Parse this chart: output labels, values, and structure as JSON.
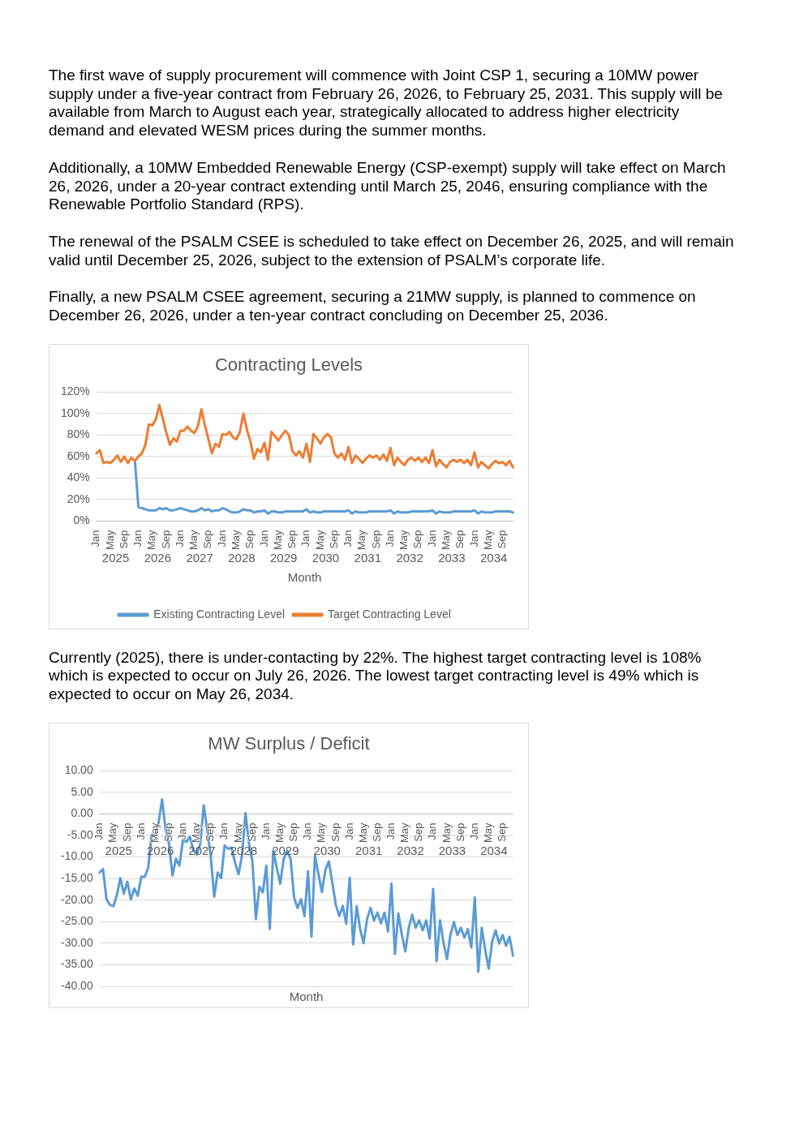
{
  "chart_data": [
    {
      "type": "line",
      "title": "Contracting Levels",
      "xlabel": "Month",
      "annotations": [
        "The first wave of supply procurement will commence with Joint CSP 1, securing a 10MW power supply under a five-year contract from February 26, 2026, to February 25, 2031. This supply will be available from March to August each year, strategically allocated to address higher electricity demand and elevated WESM prices during the summer months.",
        "Additionally, a 10MW Embedded Renewable Energy (CSP-exempt) supply will take effect on March 26, 2026, under a 20-year contract extending until March 25, 2046, ensuring compliance with the Renewable Portfolio Standard (RPS).",
        "The renewal of the PSALM CSEE is scheduled to take effect on December 26, 2025, and will remain valid until December 25, 2026, subject to the extension of PSALM’s corporate life.",
        "Finally, a new PSALM CSEE agreement, securing a 21MW supply, is planned to commence on December 26, 2026, under a ten-year contract concluding on December 25, 2036.",
        "2025",
        "2026",
        "2027",
        "2028",
        "2029",
        "2030",
        "2031",
        "2032",
        "2033",
        "2034"
      ],
      "categories": [
        "Jan",
        null,
        null,
        null,
        "May",
        null,
        null,
        null,
        "Sep",
        null,
        null,
        null,
        "Jan",
        null,
        null,
        null,
        "May",
        null,
        null,
        null,
        "Sep",
        null,
        null,
        null,
        "Jan",
        null,
        null,
        null,
        "May",
        null,
        null,
        null,
        "Sep",
        null,
        null,
        null,
        "Jan",
        null,
        null,
        null,
        "May",
        null,
        null,
        null,
        "Sep",
        null,
        null,
        null,
        "Jan",
        null,
        null,
        null,
        "May",
        null,
        null,
        null,
        "Sep",
        null,
        null,
        null,
        "Jan",
        null,
        null,
        null,
        "May",
        null,
        null,
        null,
        "Sep",
        null,
        null,
        null,
        "Jan",
        null,
        null,
        null,
        "May",
        null,
        null,
        null,
        "Sep",
        null,
        null,
        null,
        "Jan",
        null,
        null,
        null,
        "May",
        null,
        null,
        null,
        "Sep",
        null,
        null,
        null,
        "Jan",
        null,
        null,
        null,
        "May",
        null,
        null,
        null,
        "Sep",
        null,
        null,
        null,
        "Jan",
        null,
        null,
        null,
        "May",
        null,
        null,
        null,
        "Sep",
        null,
        null,
        null
      ],
      "series": [
        {
          "name": "Existing Contracting Level",
          "color": "#5b9bd5",
          "values": [
            null,
            null,
            null,
            null,
            null,
            null,
            null,
            null,
            null,
            null,
            null,
            56,
            13,
            12,
            11,
            10,
            10,
            10,
            12,
            11,
            12,
            10,
            10,
            11,
            12,
            11,
            10,
            9,
            9,
            10,
            12,
            10,
            11,
            9,
            10,
            10,
            12,
            11,
            9,
            8,
            8,
            9,
            11,
            10,
            10,
            8,
            9,
            9,
            10,
            7,
            9,
            9,
            8,
            8,
            9,
            9,
            9,
            9,
            9,
            9,
            11,
            8,
            9,
            8,
            8,
            9,
            9,
            9,
            9,
            9,
            9,
            9,
            10,
            7,
            9,
            8,
            8,
            8,
            9,
            9,
            9,
            9,
            9,
            9,
            10,
            7,
            9,
            8,
            8,
            8,
            9,
            9,
            9,
            9,
            9,
            9,
            10,
            7,
            9,
            8,
            8,
            8,
            9,
            9,
            9,
            9,
            9,
            9,
            10,
            7,
            9,
            8,
            8,
            8,
            9,
            9,
            9,
            9,
            9,
            8
          ]
        },
        {
          "name": "Target Contracting Level",
          "color": "#ed7d31",
          "values": [
            63,
            66,
            54,
            55,
            54,
            57,
            61,
            55,
            60,
            54,
            59,
            56,
            60,
            63,
            71,
            90,
            89,
            95,
            108,
            95,
            82,
            71,
            77,
            74,
            84,
            84,
            88,
            84,
            82,
            88,
            104,
            89,
            76,
            63,
            72,
            69,
            81,
            80,
            83,
            78,
            76,
            83,
            100,
            85,
            74,
            58,
            67,
            64,
            73,
            57,
            83,
            79,
            75,
            80,
            84,
            80,
            65,
            61,
            65,
            59,
            72,
            55,
            81,
            77,
            72,
            78,
            81,
            78,
            63,
            59,
            63,
            57,
            69,
            54,
            61,
            58,
            54,
            58,
            61,
            59,
            61,
            57,
            62,
            56,
            68,
            52,
            59,
            55,
            52,
            57,
            59,
            56,
            59,
            55,
            59,
            54,
            66,
            51,
            57,
            53,
            50,
            55,
            57,
            55,
            57,
            54,
            57,
            52,
            64,
            50,
            55,
            52,
            49,
            53,
            56,
            54,
            55,
            52,
            56,
            50
          ]
        }
      ],
      "ylim": [
        0,
        120
      ],
      "yticks": [
        {
          "value": 0,
          "label": "0%"
        },
        {
          "value": 20,
          "label": "20%"
        },
        {
          "value": 40,
          "label": "40%"
        },
        {
          "value": 60,
          "label": "60%"
        },
        {
          "value": 80,
          "label": "80%"
        },
        {
          "value": 100,
          "label": "100%"
        },
        {
          "value": 120,
          "label": "120%"
        }
      ],
      "grid": "y",
      "legend": "bottom",
      "marker": "none",
      "line_style": "solid"
    },
    {
      "type": "line",
      "title": "MW Surplus / Deficit",
      "xlabel": "Month",
      "annotations": [
        "Currently (2025), there is under-contacting by 22%. The highest target contracting level is 108% which is expected to occur on July 26, 2026.   The lowest target contracting level is 49% which is expected to occur on May 26, 2034.",
        "2025",
        "2026",
        "2027",
        "2028",
        "2029",
        "2030",
        "2031",
        "2032",
        "2033",
        "2034"
      ],
      "categories": [
        "Jan",
        null,
        null,
        null,
        "May",
        null,
        null,
        null,
        "Sep",
        null,
        null,
        null,
        "Jan",
        null,
        null,
        null,
        "May",
        null,
        null,
        null,
        "Sep",
        null,
        null,
        null,
        "Jan",
        null,
        null,
        null,
        "May",
        null,
        null,
        null,
        "Sep",
        null,
        null,
        null,
        "Jan",
        null,
        null,
        null,
        "May",
        null,
        null,
        null,
        "Sep",
        null,
        null,
        null,
        "Jan",
        null,
        null,
        null,
        "May",
        null,
        null,
        null,
        "Sep",
        null,
        null,
        null,
        "Jan",
        null,
        null,
        null,
        "May",
        null,
        null,
        null,
        "Sep",
        null,
        null,
        null,
        "Jan",
        null,
        null,
        null,
        "May",
        null,
        null,
        null,
        "Sep",
        null,
        null,
        null,
        "Jan",
        null,
        null,
        null,
        "May",
        null,
        null,
        null,
        "Sep",
        null,
        null,
        null,
        "Jan",
        null,
        null,
        null,
        "May",
        null,
        null,
        null,
        "Sep",
        null,
        null,
        null,
        "Jan",
        null,
        null,
        null,
        "May",
        null,
        null,
        null,
        "Sep",
        null,
        null,
        null
      ],
      "series": [
        {
          "color": "#5b9bd5",
          "values": [
            -13.6,
            -12.8,
            -19.8,
            -21.1,
            -21.4,
            -18.8,
            -14.9,
            -18.5,
            -15.7,
            -19.8,
            -17.3,
            -19.0,
            -14.6,
            -14.6,
            -12.5,
            -4.8,
            -5.0,
            -2.0,
            3.4,
            -3.5,
            -7.0,
            -14.3,
            -10.4,
            -12.0,
            -6.0,
            -6.5,
            -5.3,
            -8.4,
            -9.4,
            -6.8,
            2.0,
            -3.8,
            -9.7,
            -19.2,
            -13.6,
            -14.9,
            -7.3,
            -8.1,
            -7.8,
            -11.3,
            -14.0,
            -9.7,
            0.2,
            -6.8,
            -11.0,
            -24.4,
            -16.9,
            -18.2,
            -12.0,
            -26.7,
            -8.5,
            -12.5,
            -16.2,
            -10.5,
            -8.5,
            -10.5,
            -19.5,
            -21.8,
            -19.8,
            -23.7,
            -13.3,
            -28.5,
            -9.7,
            -14.0,
            -18.1,
            -13.0,
            -11.0,
            -16.0,
            -21.1,
            -23.7,
            -21.3,
            -25.5,
            -14.8,
            -30.3,
            -21.4,
            -26.7,
            -30.0,
            -24.4,
            -21.8,
            -24.7,
            -22.9,
            -25.4,
            -22.9,
            -27.3,
            -16.2,
            -32.5,
            -23.1,
            -28.0,
            -31.9,
            -26.4,
            -23.4,
            -26.4,
            -24.7,
            -27.0,
            -24.7,
            -28.9,
            -17.4,
            -34.2,
            -24.7,
            -29.9,
            -33.7,
            -28.0,
            -25.1,
            -28.1,
            -26.4,
            -28.7,
            -26.7,
            -31.0,
            -19.4,
            -36.6,
            -26.4,
            -31.6,
            -35.9,
            -29.6,
            -27.0,
            -30.1,
            -28.1,
            -30.6,
            -28.5,
            -32.9
          ]
        }
      ],
      "ylim": [
        -40,
        10
      ],
      "yticks": [
        {
          "value": -40,
          "label": "-40.00"
        },
        {
          "value": -35,
          "label": "-35.00"
        },
        {
          "value": -30,
          "label": "-30.00"
        },
        {
          "value": -25,
          "label": "-25.00"
        },
        {
          "value": -20,
          "label": "-20.00"
        },
        {
          "value": -15,
          "label": "-15.00"
        },
        {
          "value": -10,
          "label": "-10.00"
        },
        {
          "value": -5,
          "label": "-5.00"
        },
        {
          "value": 0,
          "label": "0.00"
        },
        {
          "value": 5,
          "label": "5.00"
        },
        {
          "value": 10,
          "label": "10.00"
        }
      ],
      "grid": "y",
      "marker": "none",
      "line_style": "solid"
    }
  ]
}
